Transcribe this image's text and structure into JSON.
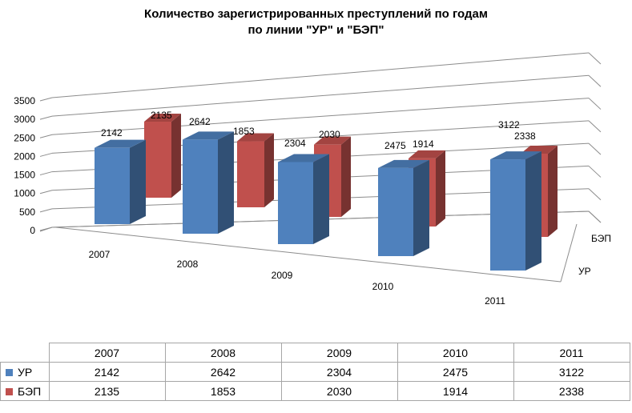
{
  "chart_data": {
    "type": "bar",
    "title_line1": "Количество зарегистрированных преступлений по годам",
    "title_line2": "по линии \"УР\" и \"БЭП\"",
    "categories": [
      "2007",
      "2008",
      "2009",
      "2010",
      "2011"
    ],
    "series": [
      {
        "name": "УР",
        "values": [
          2142,
          2642,
          2304,
          2475,
          3122
        ],
        "color": "#4f81bd"
      },
      {
        "name": "БЭП",
        "values": [
          2135,
          1853,
          2030,
          1914,
          2338
        ],
        "color": "#c0504d"
      }
    ],
    "ylim": [
      0,
      3500
    ],
    "yticks": [
      "0",
      "500",
      "1000",
      "1500",
      "2000",
      "2500",
      "3000",
      "3500"
    ],
    "grid": true,
    "depth_axis_labels": [
      "УР",
      "БЭП"
    ],
    "style": "3d-clustered-column"
  }
}
